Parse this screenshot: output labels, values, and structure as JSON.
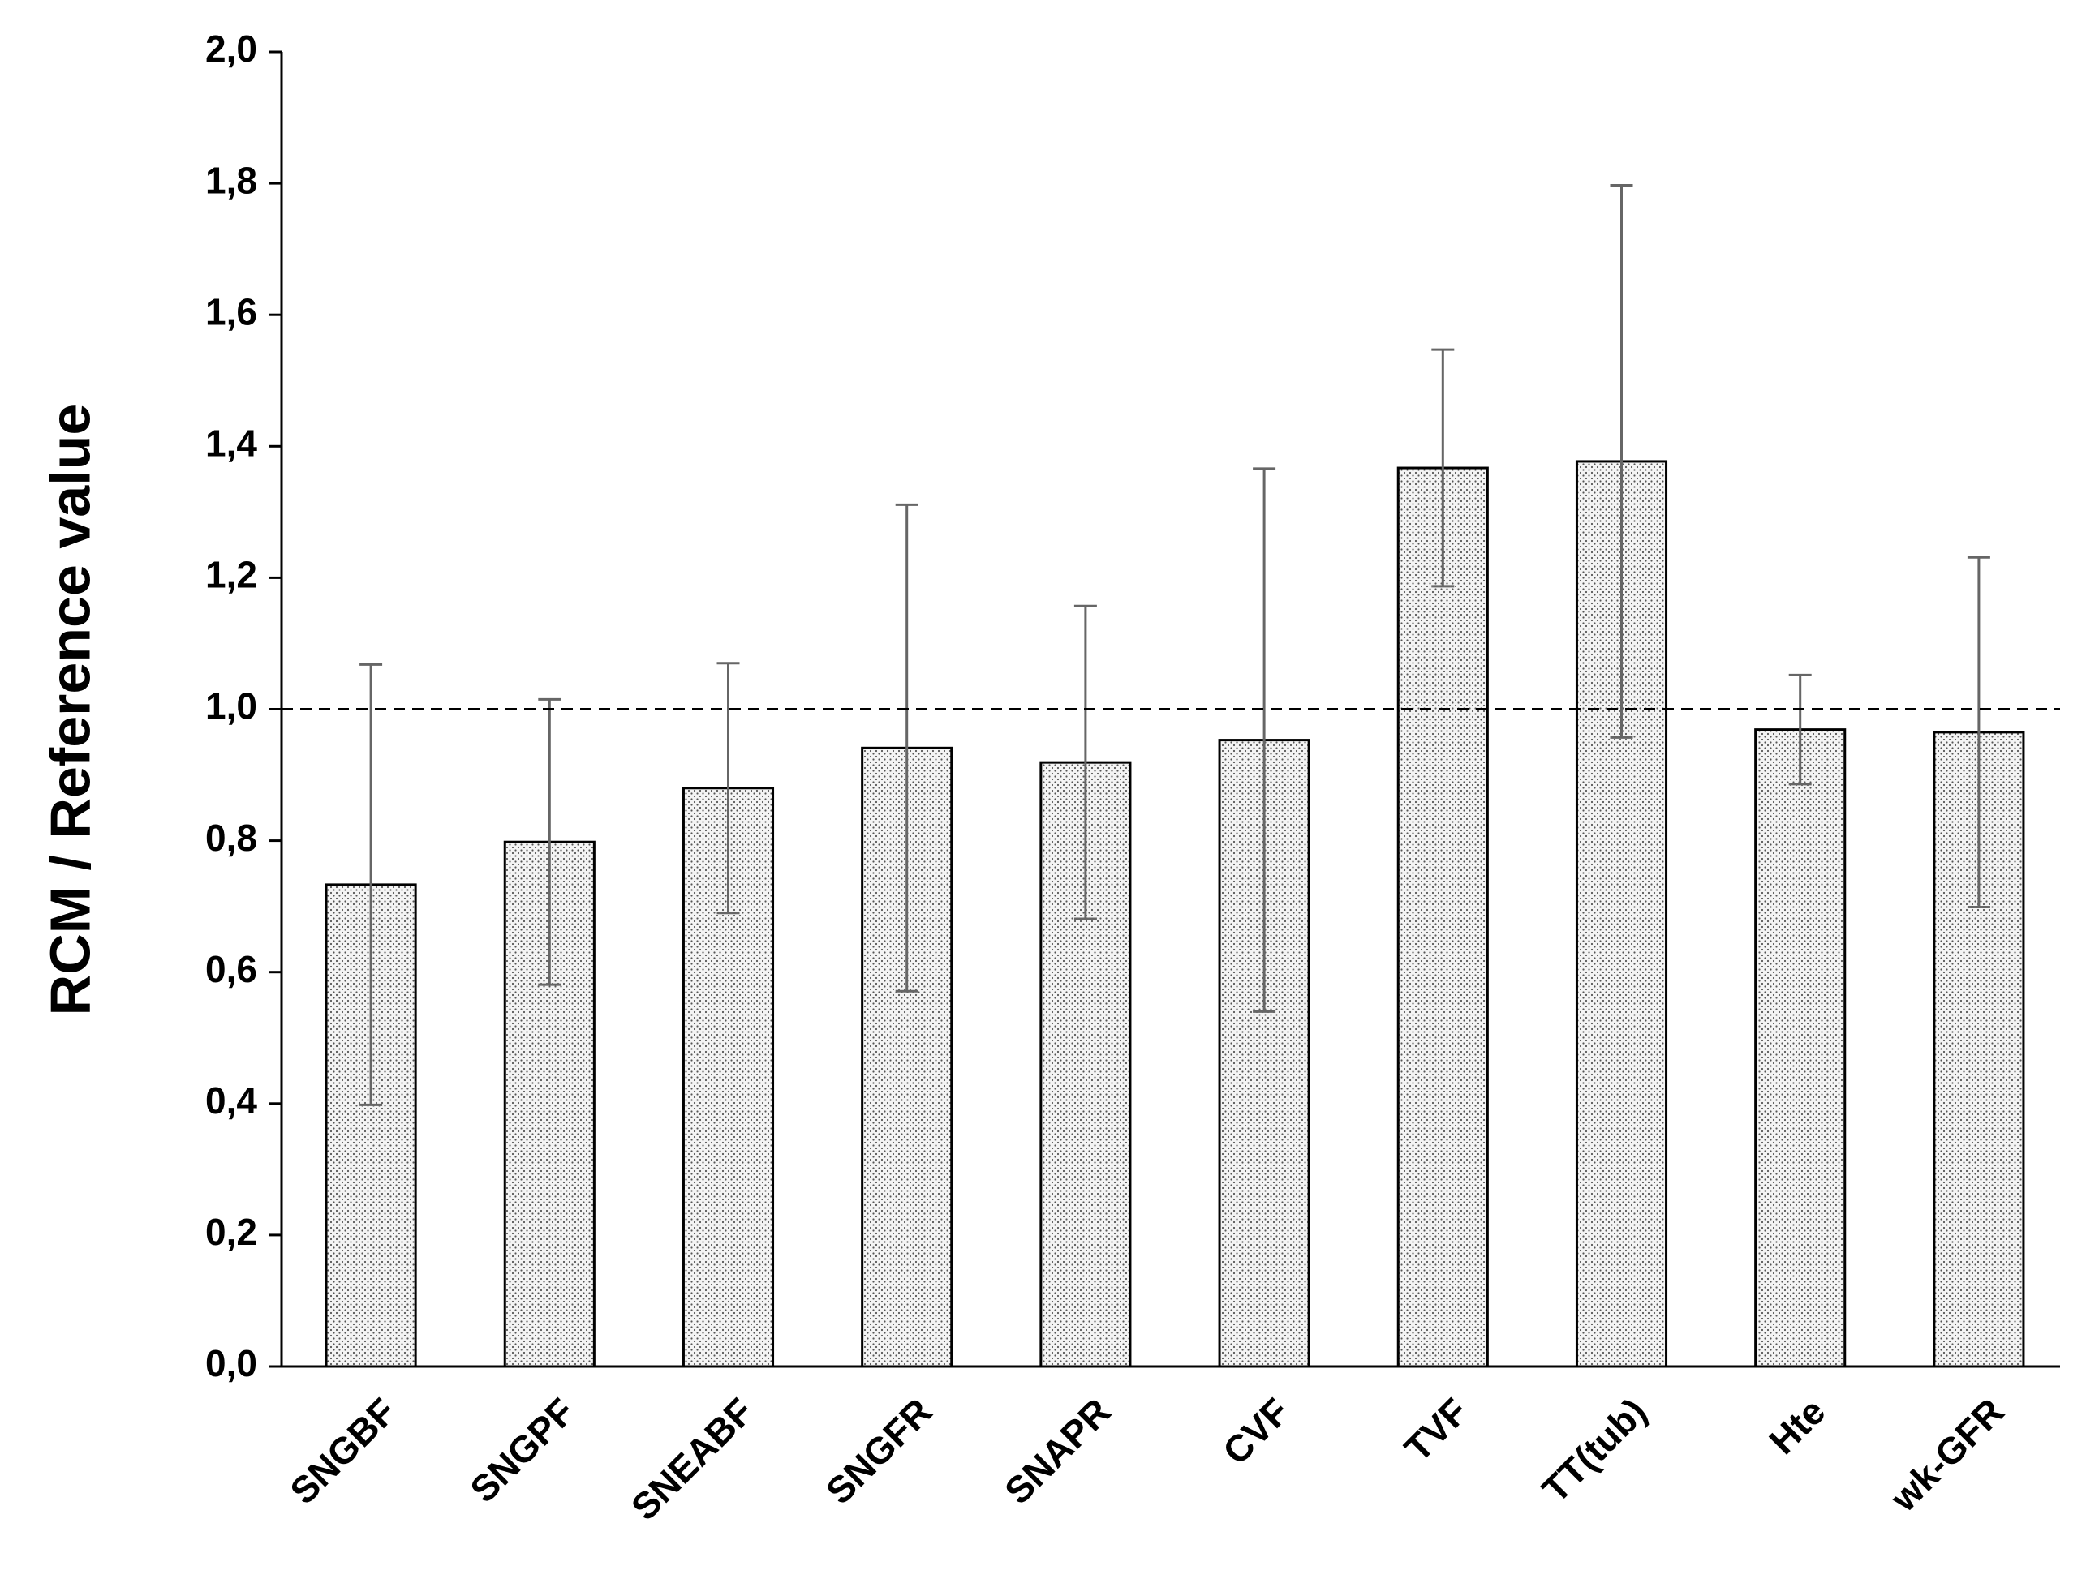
{
  "chart_data": {
    "type": "bar",
    "y_label": "RCM / Reference value",
    "categories": [
      "SNGBF",
      "SNGPF",
      "SNEABF",
      "SNGFR",
      "SNAPR",
      "CVF",
      "TVF",
      "TT(tub)",
      "Hte",
      "wk-GFR"
    ],
    "values": [
      0.733,
      0.798,
      0.88,
      0.941,
      0.919,
      0.953,
      1.367,
      1.377,
      0.969,
      0.965
    ],
    "errors": [
      0.335,
      0.217,
      0.19,
      0.37,
      0.238,
      0.413,
      0.18,
      0.42,
      0.083,
      0.266
    ],
    "color": "#f2f2f2",
    "reference_line": 1,
    "ylim": [
      0,
      2
    ],
    "yticks": [
      {
        "value": 0,
        "label": "0,0"
      },
      {
        "value": 0.2,
        "label": "0,2"
      },
      {
        "value": 0.4,
        "label": "0,4"
      },
      {
        "value": 0.6,
        "label": "0,6"
      },
      {
        "value": 0.8,
        "label": "0,8"
      },
      {
        "value": 1,
        "label": "1,0"
      },
      {
        "value": 1.2,
        "label": "1,2"
      },
      {
        "value": 1.4,
        "label": "1,4"
      },
      {
        "value": 1.6,
        "label": "1,6"
      },
      {
        "value": 1.8,
        "label": "1,8"
      },
      {
        "value": 2,
        "label": "2,0"
      }
    ],
    "grid": false
  }
}
